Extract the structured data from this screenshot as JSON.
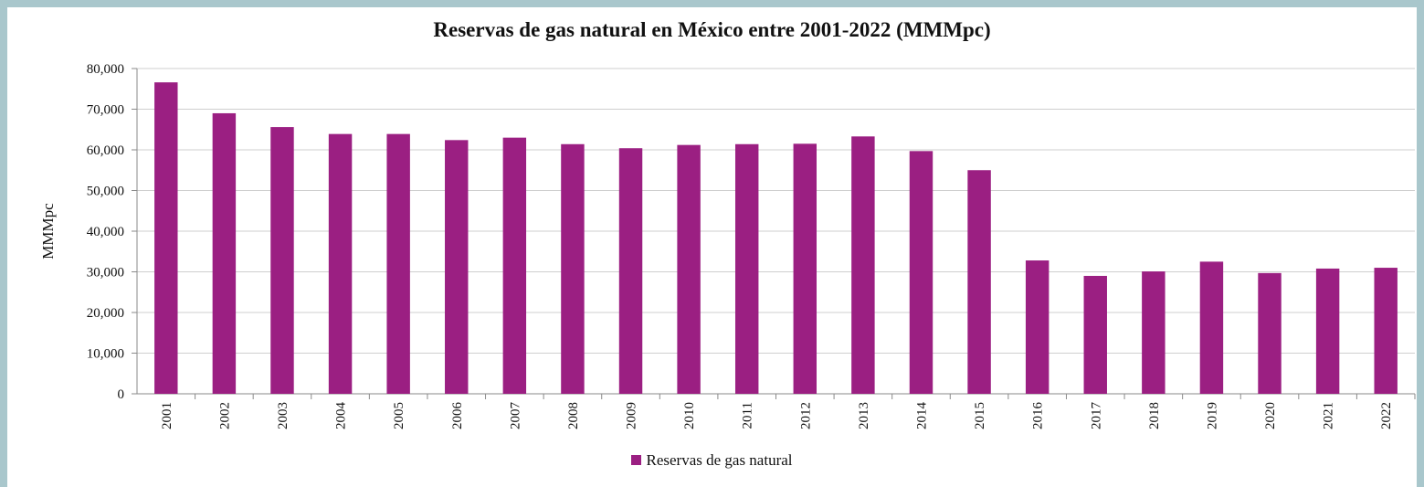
{
  "chart_data": {
    "type": "bar",
    "title": "Reservas de gas natural en México entre 2001-2022 (MMMpc)",
    "xlabel": "",
    "ylabel": "MMMpc",
    "ylim": [
      0,
      80000
    ],
    "yticks": [
      "0",
      "10,000",
      "20,000",
      "30,000",
      "40,000",
      "50,000",
      "60,000",
      "70,000",
      "80,000"
    ],
    "categories": [
      "2001",
      "2002",
      "2003",
      "2004",
      "2005",
      "2006",
      "2007",
      "2008",
      "2009",
      "2010",
      "2011",
      "2012",
      "2013",
      "2014",
      "2015",
      "2016",
      "2017",
      "2018",
      "2019",
      "2020",
      "2021",
      "2022"
    ],
    "series": [
      {
        "name": "Reservas de gas natural",
        "color": "#9b1f82",
        "values": [
          76600,
          69000,
          65600,
          63900,
          63900,
          62400,
          63000,
          61400,
          60400,
          61200,
          61400,
          61500,
          63300,
          59700,
          55000,
          32800,
          29000,
          30100,
          32500,
          29700,
          30800,
          31000
        ]
      }
    ],
    "grid": true,
    "legend_position": "bottom"
  }
}
